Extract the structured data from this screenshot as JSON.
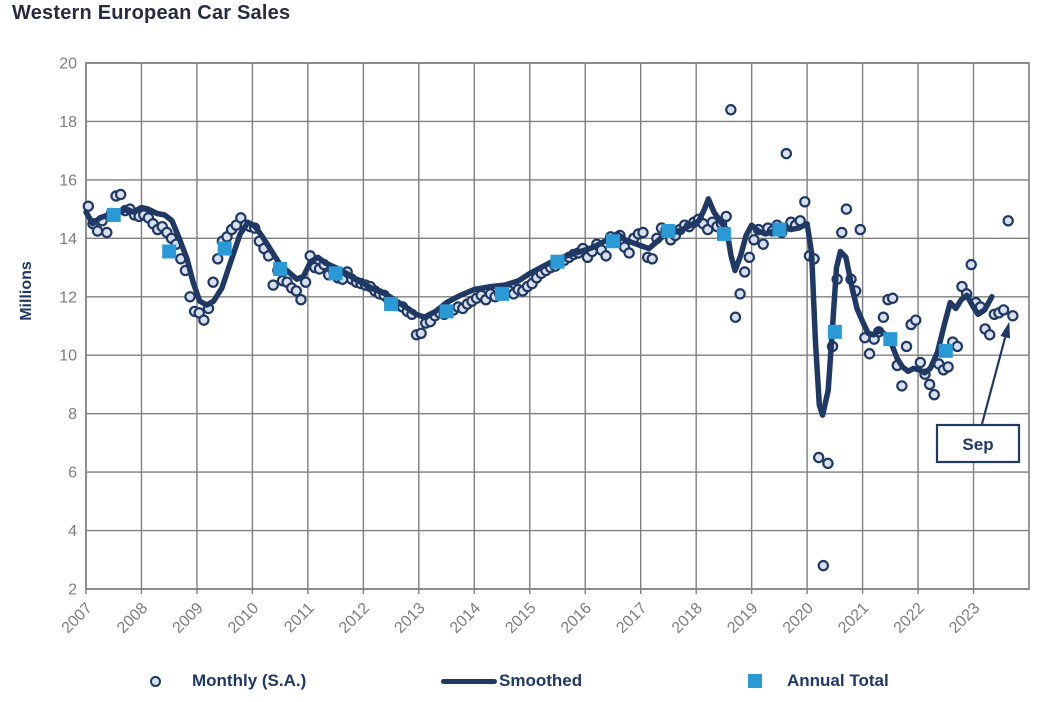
{
  "chart_data": {
    "type": "line",
    "title": "Western European Car Sales",
    "ylabel": "Millions",
    "ylim": [
      2,
      20
    ],
    "ytick_step": 2,
    "x_tick_years": [
      2007,
      2008,
      2009,
      2010,
      2011,
      2012,
      2013,
      2014,
      2015,
      2016,
      2017,
      2018,
      2019,
      2020,
      2021,
      2022,
      2023
    ],
    "x_axis_range": [
      2007,
      2024
    ],
    "grid": true,
    "legend_position": "bottom",
    "series": [
      {
        "name": "Monthly (S.A.)",
        "type": "scatter",
        "start": "2007-01",
        "end": "2023-09",
        "values": [
          15.1,
          14.5,
          14.25,
          14.6,
          14.2,
          14.85,
          15.45,
          15.5,
          14.95,
          15.0,
          14.8,
          14.75,
          14.8,
          14.7,
          14.5,
          14.3,
          14.4,
          14.2,
          14.0,
          13.8,
          13.3,
          12.9,
          12.0,
          11.5,
          11.45,
          11.2,
          11.6,
          12.5,
          13.3,
          13.9,
          14.05,
          14.3,
          14.45,
          14.7,
          14.45,
          14.4,
          14.35,
          13.9,
          13.65,
          13.4,
          12.4,
          12.9,
          12.55,
          12.5,
          12.3,
          12.2,
          11.9,
          12.5,
          13.4,
          13.0,
          12.95,
          13.1,
          12.75,
          12.9,
          12.65,
          12.6,
          12.85,
          12.6,
          12.5,
          12.45,
          12.4,
          12.35,
          12.2,
          12.1,
          12.05,
          11.9,
          11.8,
          11.7,
          11.65,
          11.5,
          11.4,
          10.7,
          10.75,
          11.1,
          11.15,
          11.35,
          11.45,
          11.4,
          11.5,
          11.55,
          11.65,
          11.6,
          11.75,
          11.85,
          11.95,
          12.05,
          11.9,
          12.1,
          12.0,
          12.1,
          12.15,
          12.2,
          12.1,
          12.25,
          12.2,
          12.35,
          12.45,
          12.65,
          12.8,
          12.9,
          13.0,
          13.05,
          13.2,
          13.25,
          13.35,
          13.45,
          13.5,
          13.65,
          13.35,
          13.55,
          13.8,
          13.6,
          13.4,
          14.05,
          13.9,
          14.1,
          13.7,
          13.5,
          14.0,
          14.15,
          14.2,
          13.35,
          13.3,
          14.0,
          14.35,
          14.3,
          13.95,
          14.1,
          14.3,
          14.45,
          14.4,
          14.55,
          14.65,
          14.5,
          14.3,
          14.55,
          14.4,
          14.5,
          14.75,
          18.4,
          11.3,
          12.1,
          12.85,
          13.35,
          13.95,
          14.3,
          13.8,
          14.35,
          14.25,
          14.45,
          14.2,
          16.9,
          14.55,
          14.45,
          14.6,
          15.25,
          13.4,
          13.3,
          6.5,
          2.8,
          6.3,
          10.3,
          12.6,
          14.2,
          15.0,
          12.6,
          12.2,
          14.3,
          10.6,
          10.05,
          10.55,
          10.8,
          11.3,
          11.9,
          11.95,
          9.65,
          8.95,
          10.3,
          11.05,
          11.2,
          9.75,
          9.35,
          9.0,
          8.65,
          9.7,
          9.5,
          9.6,
          10.45,
          10.3,
          12.35,
          12.1,
          13.1,
          11.8,
          11.65,
          10.9,
          10.7,
          11.4,
          11.45,
          11.55,
          14.6,
          11.35
        ]
      },
      {
        "name": "Smoothed",
        "type": "line",
        "points": [
          [
            2007.0,
            14.9
          ],
          [
            2007.12,
            14.5
          ],
          [
            2007.25,
            14.7
          ],
          [
            2007.4,
            14.8
          ],
          [
            2007.55,
            14.85
          ],
          [
            2007.73,
            15.0
          ],
          [
            2007.85,
            14.9
          ],
          [
            2008.0,
            15.05
          ],
          [
            2008.12,
            15.0
          ],
          [
            2008.28,
            14.85
          ],
          [
            2008.42,
            14.8
          ],
          [
            2008.55,
            14.6
          ],
          [
            2008.68,
            14.0
          ],
          [
            2008.82,
            13.3
          ],
          [
            2008.93,
            12.5
          ],
          [
            2009.05,
            11.85
          ],
          [
            2009.18,
            11.72
          ],
          [
            2009.3,
            11.85
          ],
          [
            2009.45,
            12.3
          ],
          [
            2009.6,
            13.15
          ],
          [
            2009.78,
            14.15
          ],
          [
            2009.92,
            14.55
          ],
          [
            2010.05,
            14.4
          ],
          [
            2010.2,
            14.0
          ],
          [
            2010.35,
            13.55
          ],
          [
            2010.5,
            13.1
          ],
          [
            2010.65,
            12.85
          ],
          [
            2010.8,
            12.6
          ],
          [
            2010.92,
            12.7
          ],
          [
            2011.05,
            13.2
          ],
          [
            2011.18,
            13.35
          ],
          [
            2011.32,
            13.15
          ],
          [
            2011.5,
            13.0
          ],
          [
            2011.7,
            12.8
          ],
          [
            2011.85,
            12.6
          ],
          [
            2012.0,
            12.45
          ],
          [
            2012.2,
            12.25
          ],
          [
            2012.4,
            12.1
          ],
          [
            2012.6,
            11.85
          ],
          [
            2012.8,
            11.6
          ],
          [
            2012.95,
            11.4
          ],
          [
            2013.1,
            11.3
          ],
          [
            2013.3,
            11.5
          ],
          [
            2013.5,
            11.8
          ],
          [
            2013.75,
            12.05
          ],
          [
            2014.0,
            12.25
          ],
          [
            2014.3,
            12.35
          ],
          [
            2014.55,
            12.4
          ],
          [
            2014.8,
            12.55
          ],
          [
            2015.0,
            12.8
          ],
          [
            2015.25,
            13.05
          ],
          [
            2015.5,
            13.3
          ],
          [
            2015.75,
            13.45
          ],
          [
            2016.0,
            13.6
          ],
          [
            2016.15,
            13.7
          ],
          [
            2016.3,
            13.85
          ],
          [
            2016.45,
            14.0
          ],
          [
            2016.58,
            14.15
          ],
          [
            2016.72,
            13.95
          ],
          [
            2016.85,
            13.85
          ],
          [
            2017.0,
            13.75
          ],
          [
            2017.15,
            13.65
          ],
          [
            2017.3,
            13.9
          ],
          [
            2017.45,
            14.15
          ],
          [
            2017.6,
            14.2
          ],
          [
            2017.75,
            14.3
          ],
          [
            2017.9,
            14.45
          ],
          [
            2018.05,
            14.6
          ],
          [
            2018.15,
            15.0
          ],
          [
            2018.22,
            15.35
          ],
          [
            2018.32,
            14.9
          ],
          [
            2018.45,
            14.55
          ],
          [
            2018.55,
            14.3
          ],
          [
            2018.63,
            13.4
          ],
          [
            2018.7,
            12.9
          ],
          [
            2018.8,
            13.4
          ],
          [
            2018.9,
            14.1
          ],
          [
            2019.0,
            14.45
          ],
          [
            2019.12,
            14.25
          ],
          [
            2019.25,
            14.15
          ],
          [
            2019.4,
            14.25
          ],
          [
            2019.55,
            14.4
          ],
          [
            2019.7,
            14.3
          ],
          [
            2019.85,
            14.35
          ],
          [
            2020.0,
            14.5
          ],
          [
            2020.08,
            13.5
          ],
          [
            2020.15,
            10.5
          ],
          [
            2020.22,
            8.3
          ],
          [
            2020.28,
            7.95
          ],
          [
            2020.38,
            8.8
          ],
          [
            2020.46,
            11.0
          ],
          [
            2020.53,
            13.0
          ],
          [
            2020.6,
            13.55
          ],
          [
            2020.7,
            13.35
          ],
          [
            2020.8,
            12.4
          ],
          [
            2020.9,
            11.6
          ],
          [
            2021.0,
            11.15
          ],
          [
            2021.1,
            10.75
          ],
          [
            2021.2,
            10.7
          ],
          [
            2021.3,
            10.85
          ],
          [
            2021.42,
            10.7
          ],
          [
            2021.52,
            10.4
          ],
          [
            2021.62,
            9.9
          ],
          [
            2021.72,
            9.6
          ],
          [
            2021.82,
            9.45
          ],
          [
            2021.92,
            9.55
          ],
          [
            2022.02,
            9.5
          ],
          [
            2022.12,
            9.4
          ],
          [
            2022.22,
            9.55
          ],
          [
            2022.35,
            10.1
          ],
          [
            2022.48,
            11.1
          ],
          [
            2022.58,
            11.8
          ],
          [
            2022.68,
            11.6
          ],
          [
            2022.78,
            11.9
          ],
          [
            2022.88,
            12.05
          ],
          [
            2022.98,
            11.7
          ],
          [
            2023.08,
            11.4
          ],
          [
            2023.2,
            11.55
          ],
          [
            2023.33,
            12.0
          ]
        ]
      },
      {
        "name": "Annual Total",
        "type": "scatter-square",
        "years": [
          2007,
          2008,
          2009,
          2010,
          2011,
          2012,
          2013,
          2014,
          2015,
          2016,
          2017,
          2018,
          2019,
          2020,
          2021,
          2022
        ],
        "values": [
          14.8,
          13.55,
          13.65,
          12.95,
          12.8,
          11.75,
          11.5,
          12.1,
          13.2,
          13.9,
          14.25,
          14.15,
          14.3,
          10.8,
          10.55,
          10.15
        ]
      }
    ],
    "annotation": {
      "label": "Sep",
      "target_month": "2023-09",
      "target_value": 11.35
    },
    "colors": {
      "navy": "#1f3864",
      "square_blue": "#2a9ad6",
      "point_fill": "#d9dfeb",
      "grid": "#7f7f7f",
      "axis_text": "#7d7d7d",
      "title_text": "#272c41"
    }
  }
}
